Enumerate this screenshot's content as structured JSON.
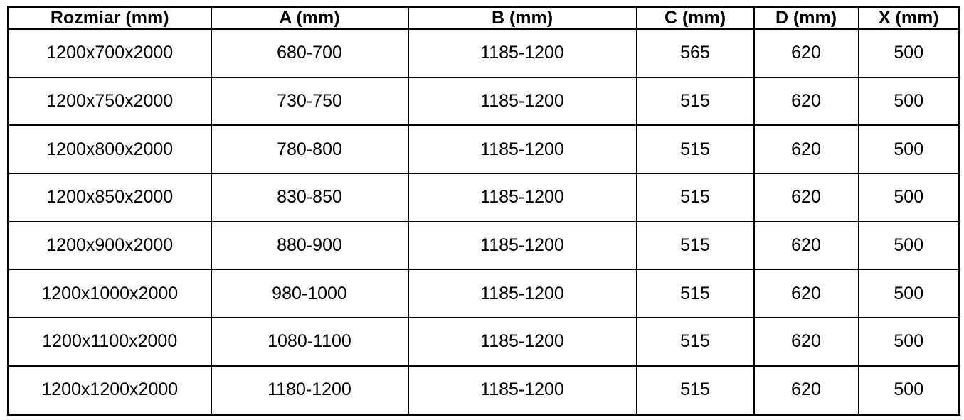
{
  "table": {
    "headers": [
      "Rozmiar (mm)",
      "A (mm)",
      "B (mm)",
      "C (mm)",
      "D (mm)",
      "X (mm)"
    ],
    "rows": [
      [
        "1200x700x2000",
        "680-700",
        "1185-1200",
        "565",
        "620",
        "500"
      ],
      [
        "1200x750x2000",
        "730-750",
        "1185-1200",
        "515",
        "620",
        "500"
      ],
      [
        "1200x800x2000",
        "780-800",
        "1185-1200",
        "515",
        "620",
        "500"
      ],
      [
        "1200x850x2000",
        "830-850",
        "1185-1200",
        "515",
        "620",
        "500"
      ],
      [
        "1200x900x2000",
        "880-900",
        "1185-1200",
        "515",
        "620",
        "500"
      ],
      [
        "1200x1000x2000",
        "980-1000",
        "1185-1200",
        "515",
        "620",
        "500"
      ],
      [
        "1200x1100x2000",
        "1080-1100",
        "1185-1200",
        "515",
        "620",
        "500"
      ],
      [
        "1200x1200x2000",
        "1180-1200",
        "1185-1200",
        "515",
        "620",
        "500"
      ]
    ],
    "colors": {
      "border": "#000000",
      "text": "#000000",
      "background": "#ffffff"
    }
  }
}
